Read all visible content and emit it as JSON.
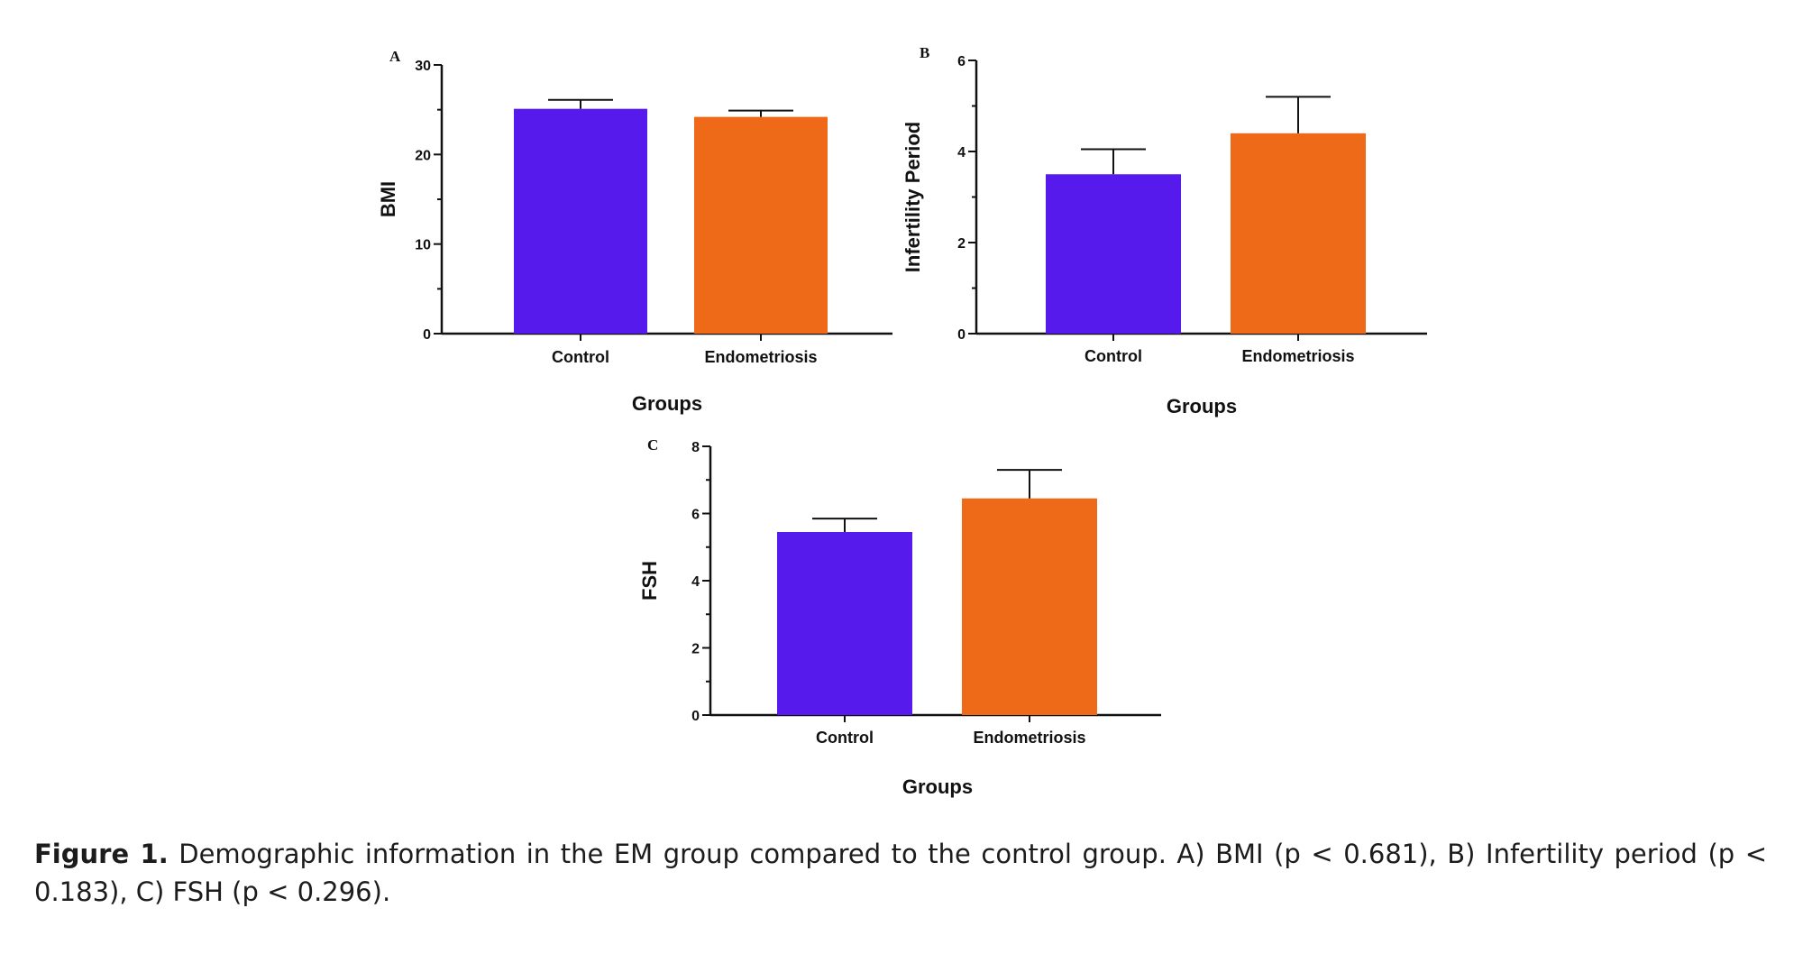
{
  "chart_data": [
    {
      "type": "bar",
      "panel": "A",
      "categories": [
        "Control",
        "Endometriosis"
      ],
      "values": [
        25.1,
        24.2
      ],
      "errors": [
        1.0,
        0.7
      ],
      "colors": [
        "#561BEC",
        "#EE6A18"
      ],
      "xlabel": "Groups",
      "ylabel": "BMI",
      "ylim": [
        0,
        30
      ],
      "yticks": [
        0,
        10,
        20,
        30
      ],
      "grid": false,
      "legend": "none"
    },
    {
      "type": "bar",
      "panel": "B",
      "categories": [
        "Control",
        "Endometriosis"
      ],
      "values": [
        3.5,
        4.4
      ],
      "errors": [
        0.55,
        0.8
      ],
      "colors": [
        "#561BEC",
        "#EE6A18"
      ],
      "xlabel": "Groups",
      "ylabel": "Infertility Period",
      "ylim": [
        0,
        6
      ],
      "yticks": [
        0,
        2,
        4,
        6
      ],
      "grid": false,
      "legend": "none"
    },
    {
      "type": "bar",
      "panel": "C",
      "categories": [
        "Control",
        "Endometriosis"
      ],
      "values": [
        5.45,
        6.45
      ],
      "errors": [
        0.4,
        0.85
      ],
      "colors": [
        "#561BEC",
        "#EE6A18"
      ],
      "xlabel": "Groups",
      "ylabel": "FSH",
      "ylim": [
        0,
        8
      ],
      "yticks": [
        0,
        2,
        4,
        6,
        8
      ],
      "grid": false,
      "legend": "none"
    }
  ],
  "caption": {
    "label": "Figure 1.",
    "text": " Demographic information in the EM group compared to the control group. A) BMI (p < 0.681), B) Infertility period (p < 0.183), C) FSH (p < 0.296)."
  }
}
